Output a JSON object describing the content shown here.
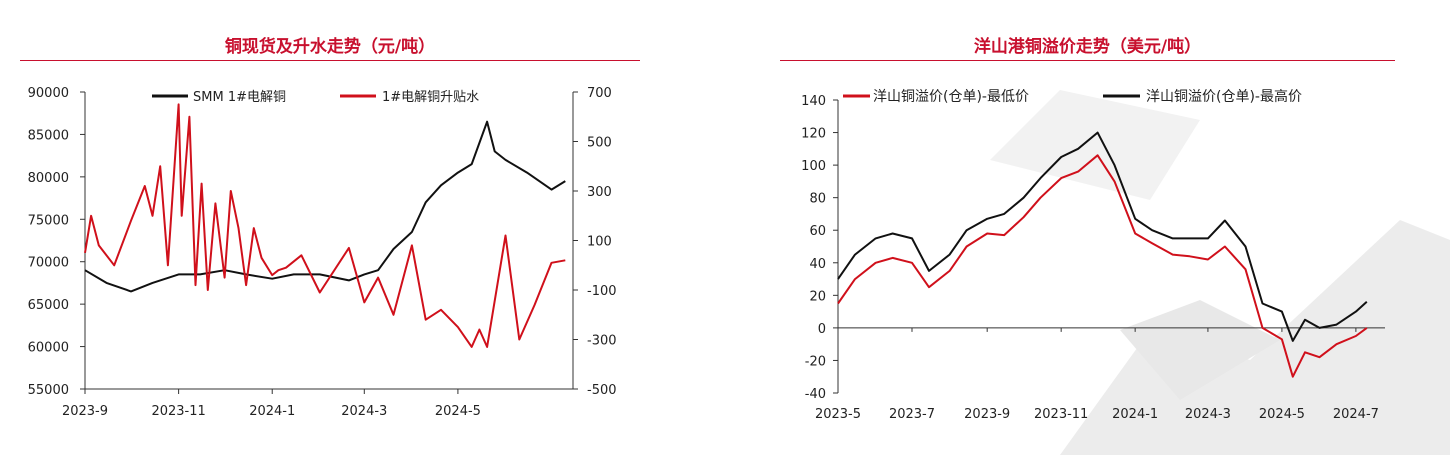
{
  "left_chart": {
    "title": "铜现货及升水走势（元/吨）",
    "legend": [
      "SMM 1#电解铜",
      "1#电解铜升贴水"
    ],
    "colors": {
      "spot": "#111111",
      "premium": "#d0101b"
    },
    "y_left_ticks": [
      "90000",
      "85000",
      "80000",
      "75000",
      "70000",
      "65000",
      "60000",
      "55000"
    ],
    "y_right_ticks": [
      "700",
      "500",
      "300",
      "100",
      "-100",
      "-300",
      "-500"
    ],
    "x_ticks": [
      "2023-9",
      "2023-11",
      "2024-1",
      "2024-3",
      "2024-5"
    ]
  },
  "right_chart": {
    "title": "洋山港铜溢价走势（美元/吨）",
    "legend": [
      "洋山铜溢价(仓单)-最低价",
      "洋山铜溢价(仓单)-最高价"
    ],
    "colors": {
      "low": "#d0101b",
      "high": "#111111"
    },
    "y_ticks": [
      "140",
      "120",
      "100",
      "80",
      "60",
      "40",
      "20",
      "0",
      "-20",
      "-40"
    ],
    "x_ticks": [
      "2023-5",
      "2023-7",
      "2023-9",
      "2023-11",
      "2024-1",
      "2024-3",
      "2024-5",
      "2024-7"
    ]
  },
  "chart_data": [
    {
      "type": "line",
      "title": "铜现货及升水走势（元/吨）",
      "ylim_left": [
        55000,
        90000
      ],
      "ylim_right": [
        -500,
        700
      ],
      "series": [
        {
          "name": "SMM 1#电解铜",
          "axis": "left",
          "x": [
            "2023-09-01",
            "2023-09-15",
            "2023-10-01",
            "2023-10-15",
            "2023-11-01",
            "2023-11-15",
            "2023-12-01",
            "2023-12-15",
            "2024-01-01",
            "2024-01-15",
            "2024-02-01",
            "2024-02-20",
            "2024-03-01",
            "2024-03-10",
            "2024-03-20",
            "2024-04-01",
            "2024-04-10",
            "2024-04-20",
            "2024-05-01",
            "2024-05-10",
            "2024-05-20",
            "2024-05-25",
            "2024-06-01",
            "2024-06-15",
            "2024-07-01",
            "2024-07-10"
          ],
          "values": [
            69000,
            67500,
            66500,
            67500,
            68500,
            68500,
            69000,
            68500,
            68000,
            68500,
            68500,
            67800,
            68500,
            69000,
            71500,
            73500,
            77000,
            79000,
            80500,
            81500,
            86500,
            83000,
            82000,
            80500,
            78500,
            79500
          ]
        },
        {
          "name": "1#电解铜升贴水",
          "axis": "right",
          "x": [
            "2023-09-01",
            "2023-09-05",
            "2023-09-10",
            "2023-09-20",
            "2023-10-01",
            "2023-10-10",
            "2023-10-15",
            "2023-10-20",
            "2023-10-25",
            "2023-11-01",
            "2023-11-03",
            "2023-11-08",
            "2023-11-12",
            "2023-11-16",
            "2023-11-20",
            "2023-11-25",
            "2023-12-01",
            "2023-12-05",
            "2023-12-10",
            "2023-12-15",
            "2023-12-20",
            "2023-12-25",
            "2024-01-01",
            "2024-01-05",
            "2024-01-10",
            "2024-01-20",
            "2024-02-01",
            "2024-02-20",
            "2024-03-01",
            "2024-03-10",
            "2024-03-20",
            "2024-04-01",
            "2024-04-10",
            "2024-04-20",
            "2024-05-01",
            "2024-05-10",
            "2024-05-15",
            "2024-05-20",
            "2024-06-01",
            "2024-06-10",
            "2024-06-20",
            "2024-07-01",
            "2024-07-10"
          ],
          "values": [
            50,
            200,
            80,
            0,
            180,
            320,
            200,
            400,
            0,
            650,
            200,
            600,
            -80,
            330,
            -100,
            250,
            -50,
            300,
            150,
            -80,
            150,
            30,
            -40,
            -20,
            -10,
            40,
            -110,
            70,
            -150,
            -50,
            -200,
            80,
            -220,
            -180,
            -250,
            -330,
            -260,
            -330,
            120,
            -300,
            -160,
            10,
            20
          ]
        }
      ]
    },
    {
      "type": "line",
      "title": "洋山港铜溢价走势（美元/吨）",
      "ylim": [
        -40,
        140
      ],
      "series": [
        {
          "name": "洋山铜溢价(仓单)-最低价",
          "x": [
            "2023-05-01",
            "2023-05-15",
            "2023-06-01",
            "2023-06-15",
            "2023-07-01",
            "2023-07-15",
            "2023-08-01",
            "2023-08-15",
            "2023-09-01",
            "2023-09-15",
            "2023-10-01",
            "2023-10-15",
            "2023-11-01",
            "2023-11-15",
            "2023-12-01",
            "2023-12-15",
            "2024-01-01",
            "2024-01-15",
            "2024-02-01",
            "2024-02-15",
            "2024-03-01",
            "2024-03-15",
            "2024-04-01",
            "2024-04-15",
            "2024-05-01",
            "2024-05-10",
            "2024-05-20",
            "2024-06-01",
            "2024-06-15",
            "2024-07-01",
            "2024-07-10"
          ],
          "values": [
            15,
            30,
            40,
            43,
            40,
            25,
            35,
            50,
            58,
            57,
            68,
            80,
            92,
            96,
            106,
            90,
            58,
            52,
            45,
            44,
            42,
            50,
            36,
            0,
            -7,
            -30,
            -15,
            -18,
            -10,
            -5,
            0
          ]
        },
        {
          "name": "洋山铜溢价(仓单)-最高价",
          "x": [
            "2023-05-01",
            "2023-05-15",
            "2023-06-01",
            "2023-06-15",
            "2023-07-01",
            "2023-07-15",
            "2023-08-01",
            "2023-08-15",
            "2023-09-01",
            "2023-09-15",
            "2023-10-01",
            "2023-10-15",
            "2023-11-01",
            "2023-11-15",
            "2023-12-01",
            "2023-12-15",
            "2024-01-01",
            "2024-01-15",
            "2024-02-01",
            "2024-02-15",
            "2024-03-01",
            "2024-03-15",
            "2024-04-01",
            "2024-04-15",
            "2024-05-01",
            "2024-05-10",
            "2024-05-20",
            "2024-06-01",
            "2024-06-15",
            "2024-07-01",
            "2024-07-10"
          ],
          "values": [
            30,
            45,
            55,
            58,
            55,
            35,
            45,
            60,
            67,
            70,
            80,
            92,
            105,
            110,
            120,
            100,
            67,
            60,
            55,
            55,
            55,
            66,
            50,
            15,
            10,
            -8,
            5,
            0,
            2,
            10,
            16
          ]
        }
      ]
    }
  ]
}
